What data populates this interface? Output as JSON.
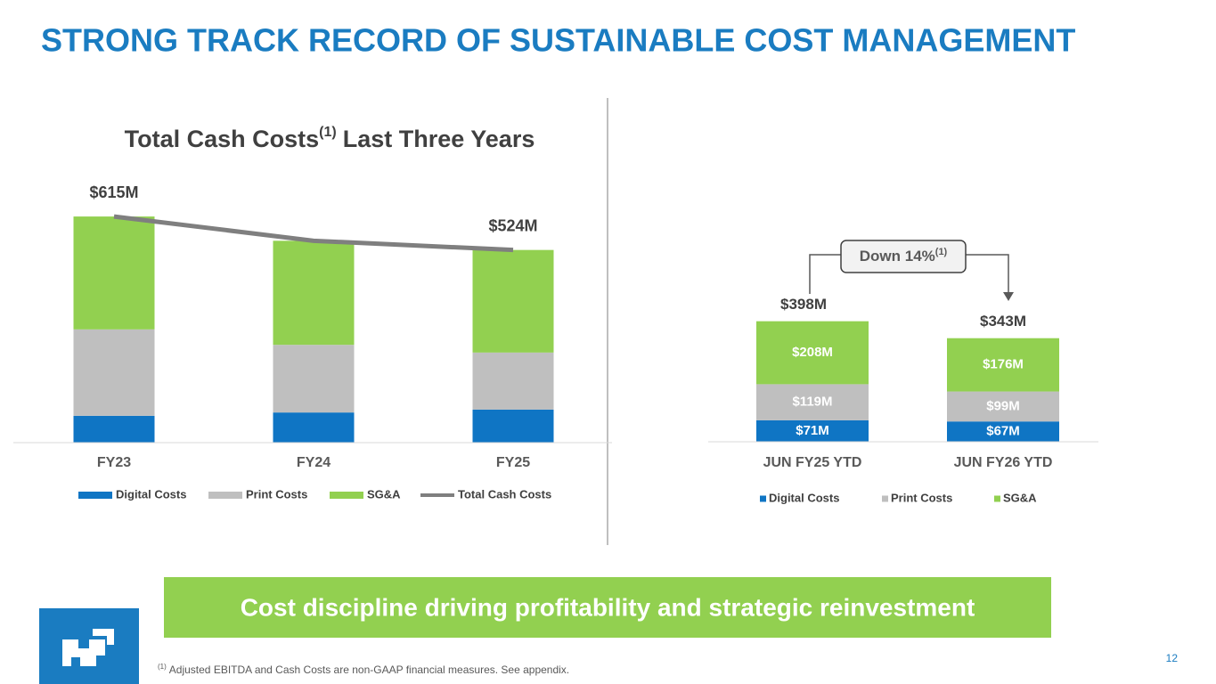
{
  "title": "STRONG TRACK RECORD OF SUSTAINABLE COST MANAGEMENT",
  "chart_data": [
    {
      "type": "bar",
      "stacked": true,
      "title": "Total Cash Costs",
      "title_superscript": "(1)",
      "title_suffix": "Last Three Years",
      "categories": [
        "FY23",
        "FY24",
        "FY25"
      ],
      "ylim": [
        0,
        700
      ],
      "series": [
        {
          "name": "Digital Costs",
          "color": "#0f75c4",
          "values": [
            73,
            82,
            90
          ]
        },
        {
          "name": "Print Costs",
          "color": "#bfbfbf",
          "values": [
            235,
            184,
            155
          ]
        },
        {
          "name": "SG&A",
          "color": "#92d050",
          "values": [
            307,
            283,
            279
          ]
        },
        {
          "name": "Total Cash Costs",
          "type": "line",
          "color": "#7f7f7f",
          "values": [
            615,
            549,
            524
          ],
          "value_labels": [
            "$615M",
            null,
            "$524M"
          ]
        }
      ]
    },
    {
      "type": "bar",
      "stacked": true,
      "categories": [
        "JUN FY25 YTD",
        "JUN FY26 YTD"
      ],
      "ylim": [
        0,
        500
      ],
      "series": [
        {
          "name": "Digital Costs",
          "color": "#0f75c4",
          "values": [
            71,
            67
          ],
          "value_labels": [
            "$71M",
            "$67M"
          ]
        },
        {
          "name": "Print Costs",
          "color": "#bfbfbf",
          "values": [
            119,
            99
          ],
          "value_labels": [
            "$119M",
            "$99M"
          ]
        },
        {
          "name": "SG&A",
          "color": "#92d050",
          "values": [
            208,
            176
          ],
          "value_labels": [
            "$208M",
            "$176M"
          ]
        }
      ],
      "totals": {
        "values": [
          398,
          343
        ],
        "value_labels": [
          "$398M",
          "$343M"
        ]
      },
      "annotation": {
        "text": "Down 14%",
        "superscript": "(1)"
      }
    }
  ],
  "banner": "Cost discipline driving profitability and strategic reinvestment",
  "footnote": {
    "marker": "(1)",
    "text": "Adjusted EBITDA and Cash Costs are non-GAAP financial measures. See appendix."
  },
  "page_number": "12"
}
